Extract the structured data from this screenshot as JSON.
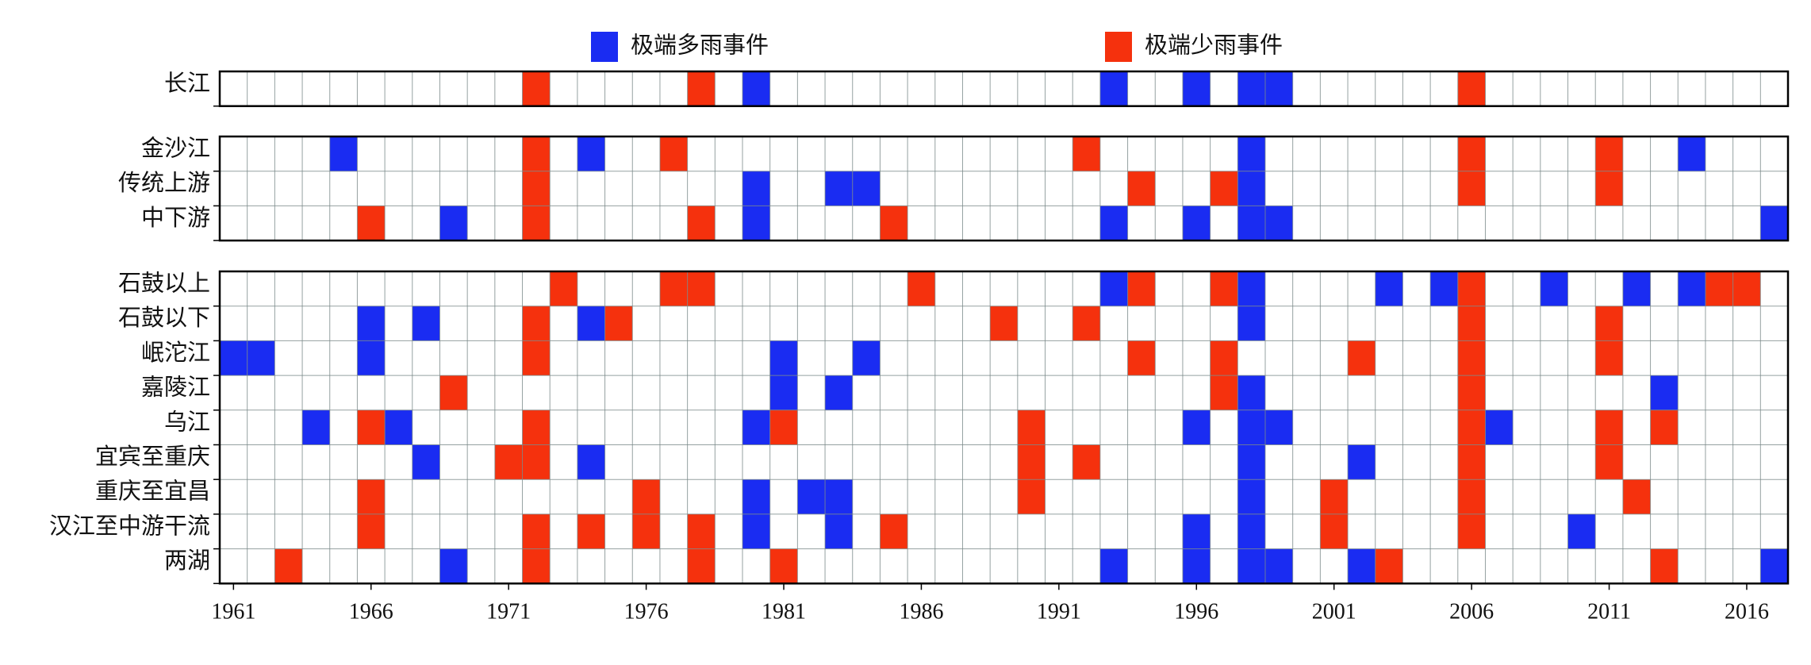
{
  "chart_data": {
    "type": "heatmap",
    "series": [
      {
        "name": "极端多雨事件",
        "color": "#1a2cf2"
      },
      {
        "name": "极端少雨事件",
        "color": "#f5310d"
      }
    ],
    "xlim": [
      1960.5,
      2017.5
    ],
    "xticks": [
      1961,
      1966,
      1971,
      1976,
      1981,
      1986,
      1991,
      1996,
      2001,
      2006,
      2011,
      2016
    ],
    "panels": [
      {
        "rows": [
          {
            "label": "长江",
            "years": [
              [
                1980,
                1993,
                1996,
                1998,
                1999
              ],
              [
                1972,
                1978,
                2006
              ]
            ]
          }
        ]
      },
      {
        "rows": [
          {
            "label": "金沙江",
            "years": [
              [
                1965,
                1974,
                1998,
                2014
              ],
              [
                1972,
                1977,
                1992,
                2006,
                2011
              ]
            ]
          },
          {
            "label": "传统上游",
            "years": [
              [
                1980,
                1983,
                1984,
                1998
              ],
              [
                1972,
                1994,
                1997,
                2006,
                2011
              ]
            ]
          },
          {
            "label": "中下游",
            "years": [
              [
                1969,
                1980,
                1993,
                1996,
                1998,
                1999,
                2017
              ],
              [
                1966,
                1972,
                1978,
                1985
              ]
            ]
          }
        ]
      },
      {
        "rows": [
          {
            "label": "石鼓以上",
            "years": [
              [
                1993,
                1998,
                2003,
                2005,
                2009,
                2012,
                2014
              ],
              [
                1973,
                1977,
                1978,
                1986,
                1994,
                1997,
                2006,
                2015,
                2016
              ]
            ]
          },
          {
            "label": "石鼓以下",
            "years": [
              [
                1966,
                1968,
                1974,
                1998
              ],
              [
                1972,
                1975,
                1989,
                1992,
                2006,
                2011
              ]
            ]
          },
          {
            "label": "岷沱江",
            "years": [
              [
                1961,
                1962,
                1966,
                1981,
                1984
              ],
              [
                1972,
                1994,
                1997,
                2002,
                2006,
                2011
              ]
            ]
          },
          {
            "label": "嘉陵江",
            "years": [
              [
                1981,
                1983,
                1998,
                2013
              ],
              [
                1969,
                1997,
                2006
              ]
            ]
          },
          {
            "label": "乌江",
            "years": [
              [
                1964,
                1967,
                1980,
                1996,
                1998,
                1999,
                2007
              ],
              [
                1966,
                1972,
                1981,
                1990,
                2006,
                2011,
                2013
              ]
            ]
          },
          {
            "label": "宜宾至重庆",
            "years": [
              [
                1968,
                1974,
                1998,
                2002
              ],
              [
                1971,
                1972,
                1990,
                1992,
                2006,
                2011
              ]
            ]
          },
          {
            "label": "重庆至宜昌",
            "years": [
              [
                1980,
                1982,
                1983,
                1998
              ],
              [
                1966,
                1976,
                1990,
                2001,
                2006,
                2012
              ]
            ]
          },
          {
            "label": "汉江至中游干流",
            "years": [
              [
                1980,
                1983,
                1996,
                1998,
                2010
              ],
              [
                1966,
                1972,
                1974,
                1976,
                1978,
                1985,
                2001,
                2006
              ]
            ]
          },
          {
            "label": "两湖",
            "years": [
              [
                1969,
                1993,
                1996,
                1998,
                1999,
                2002,
                2017
              ],
              [
                1963,
                1972,
                1978,
                1981,
                2003,
                2013
              ]
            ]
          }
        ]
      }
    ]
  }
}
